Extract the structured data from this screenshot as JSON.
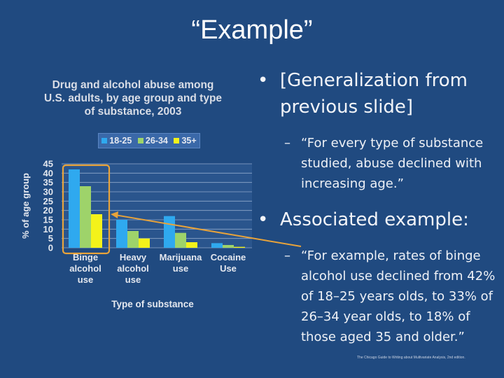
{
  "slide": {
    "title": "“Example”",
    "citation": "The Chicago Guide to Writing about Multivariate Analysis, 2nd edition."
  },
  "bullets": {
    "b1": "[Generalization from previous slide]",
    "b1_sub": "“For every type of substance studied, abuse declined with increasing age.”",
    "b2": "Associated example:",
    "b2_sub": "“For example, rates of binge alcohol use declined from 42% of 18–25 years olds, to 33% of 26–34 year olds, to 18% of those aged 35 and older.”",
    "bullet_symbol": "•",
    "dash_symbol": "–"
  },
  "colors": {
    "background": "#204a80",
    "highlight": "#e8a33a",
    "series": [
      "#2fa9ef",
      "#9ed36a",
      "#f3f21a"
    ]
  },
  "chart_data": {
    "type": "bar",
    "title": "Drug and alcohol abuse among U.S. adults, by age group and type of substance, 2003",
    "xlabel": "Type of substance",
    "ylabel": "% of age group",
    "ylim": [
      0,
      45
    ],
    "yticks": [
      0,
      5,
      10,
      15,
      20,
      25,
      30,
      35,
      40,
      45
    ],
    "grid": true,
    "legend_position": "top",
    "categories": [
      [
        "Binge",
        "alcohol",
        "use"
      ],
      [
        "Heavy",
        "alcohol",
        "use"
      ],
      [
        "Marijuana",
        "use"
      ],
      [
        "Cocaine",
        "Use"
      ]
    ],
    "series": [
      {
        "name": "18-25",
        "values": [
          42,
          15,
          17,
          2.5
        ]
      },
      {
        "name": "26-34",
        "values": [
          33,
          9,
          8,
          1.5
        ]
      },
      {
        "name": "35+",
        "values": [
          18,
          5,
          3,
          0.5
        ]
      }
    ],
    "highlight_category": 0
  }
}
